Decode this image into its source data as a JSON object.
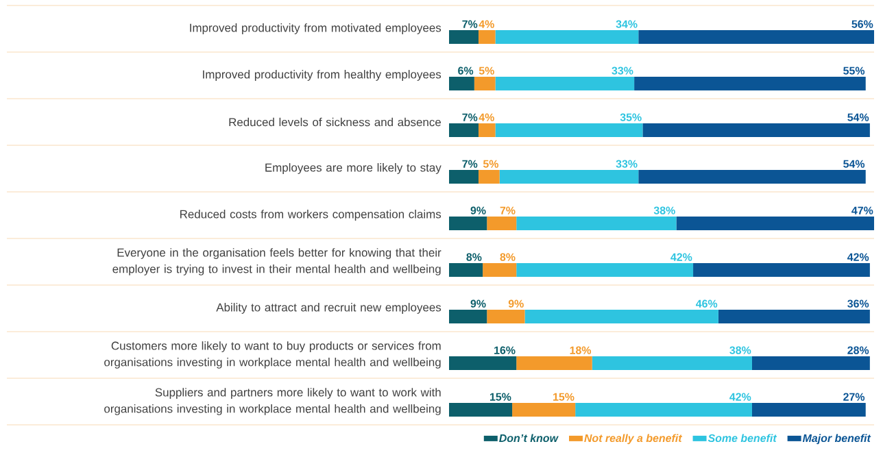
{
  "chart_data": {
    "type": "bar",
    "orientation": "horizontal",
    "stacked": true,
    "grid": "y",
    "legend": "bottom right",
    "categories": [
      "Improved productivity from motivated employees",
      "Improved productivity from healthy employees",
      "Reduced levels of sickness and absence",
      "Employees are more likely to stay",
      "Reduced costs from workers compensation claims",
      "Everyone in the organisation feels better for knowing that their employer is trying to invest in their mental health and wellbeing",
      "Ability to attract and recruit new employees",
      "Customers more likely to want to buy products or services from organisations investing in workplace mental health and wellbeing",
      "Suppliers and partners more likely to want to work with organisations investing in workplace mental health and wellbeing"
    ],
    "series": [
      {
        "name": "Don’t know",
        "color": "#0d5f6b",
        "values": [
          7,
          6,
          7,
          7,
          9,
          8,
          9,
          16,
          15
        ],
        "value_labels": [
          "7%",
          "6%",
          "7%",
          "7%",
          "9%",
          "8%",
          "9%",
          "16%",
          "15%"
        ]
      },
      {
        "name": "Not really a benefit",
        "color": "#f39a2b",
        "values": [
          4,
          5,
          4,
          5,
          7,
          8,
          9,
          18,
          15
        ],
        "value_labels": [
          "4%",
          "5%",
          "4%",
          "5%",
          "7%",
          "8%",
          "9%",
          "18%",
          "15%"
        ]
      },
      {
        "name": "Some benefit",
        "color": "#2ec4e0",
        "values": [
          34,
          33,
          35,
          33,
          38,
          42,
          46,
          38,
          42
        ],
        "value_labels": [
          "34%",
          "33%",
          "35%",
          "33%",
          "38%",
          "42%",
          "46%",
          "38%",
          "42%"
        ]
      },
      {
        "name": "Major benefit",
        "color": "#0b5595",
        "values": [
          56,
          55,
          54,
          54,
          47,
          42,
          36,
          28,
          27
        ],
        "value_labels": [
          "56%",
          "55%",
          "54%",
          "54%",
          "47%",
          "42%",
          "36%",
          "28%",
          "27%"
        ]
      }
    ]
  }
}
